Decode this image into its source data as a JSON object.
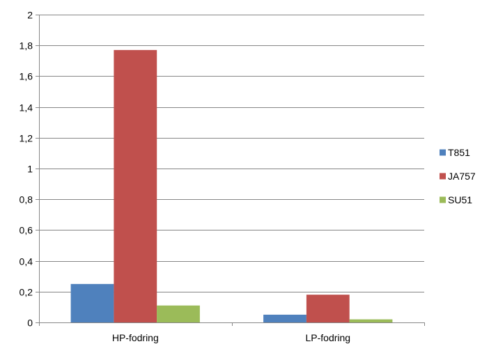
{
  "chart_data": {
    "type": "bar",
    "title": "",
    "xlabel": "",
    "ylabel": "",
    "categories": [
      "HP-fodring",
      "LP-fodring"
    ],
    "series": [
      {
        "name": "T851",
        "color": "#4f81bd",
        "values": [
          0.25,
          0.05
        ]
      },
      {
        "name": "JA757",
        "color": "#c0504d",
        "values": [
          1.77,
          0.18
        ]
      },
      {
        "name": "SU51",
        "color": "#9bbb59",
        "values": [
          0.11,
          0.02
        ]
      }
    ],
    "ylim": [
      0,
      2
    ],
    "yticks": [
      {
        "value": 0,
        "label": "0"
      },
      {
        "value": 0.2,
        "label": "0,2"
      },
      {
        "value": 0.4,
        "label": "0,4"
      },
      {
        "value": 0.6,
        "label": "0,6"
      },
      {
        "value": 0.8,
        "label": "0,8"
      },
      {
        "value": 1,
        "label": "1"
      },
      {
        "value": 1.2,
        "label": "1,2"
      },
      {
        "value": 1.4,
        "label": "1,4"
      },
      {
        "value": 1.6,
        "label": "1,6"
      },
      {
        "value": 1.8,
        "label": "1,8"
      },
      {
        "value": 2,
        "label": "2"
      }
    ],
    "grid": true,
    "legend_position": "right"
  }
}
